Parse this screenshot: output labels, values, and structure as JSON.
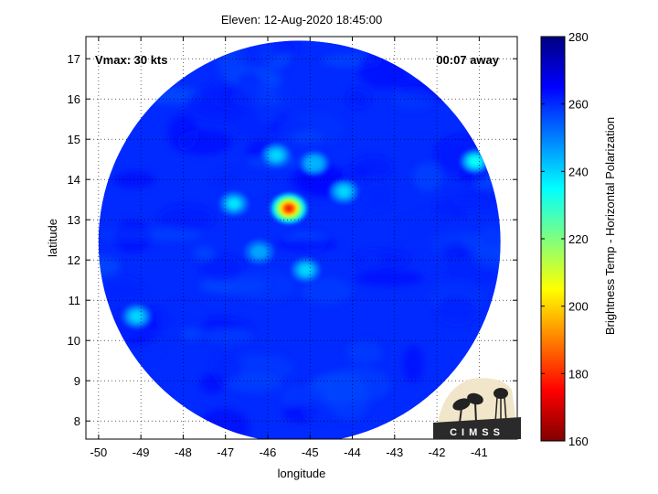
{
  "chart_data": {
    "type": "heatmap",
    "title": "Eleven: 12-Aug-2020 18:45:00",
    "xlabel": "longitude",
    "ylabel": "latitude",
    "xlim": [
      -50.3,
      -40.1
    ],
    "ylim": [
      7.55,
      17.55
    ],
    "x_ticks": [
      -50,
      -49,
      -48,
      -47,
      -46,
      -45,
      -44,
      -43,
      -42,
      -41
    ],
    "y_ticks": [
      8,
      9,
      10,
      11,
      12,
      13,
      14,
      15,
      16,
      17
    ],
    "grid": true,
    "grid_style": "dotted",
    "annotations": {
      "vmax": "Vmax: 30 kts",
      "away": "00:07 away"
    },
    "colorbar": {
      "label": "Brightness Temp - Horizontal Polarization",
      "range": [
        160,
        280
      ],
      "ticks": [
        160,
        180,
        200,
        220,
        240,
        260,
        280
      ],
      "colormap": "jet",
      "colors": [
        "#800000",
        "#ff0000",
        "#ffff00",
        "#00ffff",
        "#0000ff",
        "#000080"
      ]
    },
    "swath": {
      "center_lon": -45.25,
      "center_lat": 12.45,
      "radius_deg": 5.0,
      "background_value": 260
    },
    "features": [
      {
        "lon": -45.5,
        "lat": 13.28,
        "value": 175
      },
      {
        "lon": -46.8,
        "lat": 13.4,
        "value": 238
      },
      {
        "lon": -45.8,
        "lat": 14.6,
        "value": 240
      },
      {
        "lon": -44.2,
        "lat": 13.7,
        "value": 240
      },
      {
        "lon": -44.9,
        "lat": 14.4,
        "value": 244
      },
      {
        "lon": -41.1,
        "lat": 14.45,
        "value": 234
      },
      {
        "lon": -45.1,
        "lat": 11.75,
        "value": 240
      },
      {
        "lon": -49.1,
        "lat": 10.6,
        "value": 240
      },
      {
        "lon": -46.2,
        "lat": 12.2,
        "value": 246
      }
    ]
  },
  "logo": {
    "text": "CIMSS"
  },
  "colors": {
    "background": "#ffffff",
    "swath_base": "#1f5ef4"
  }
}
